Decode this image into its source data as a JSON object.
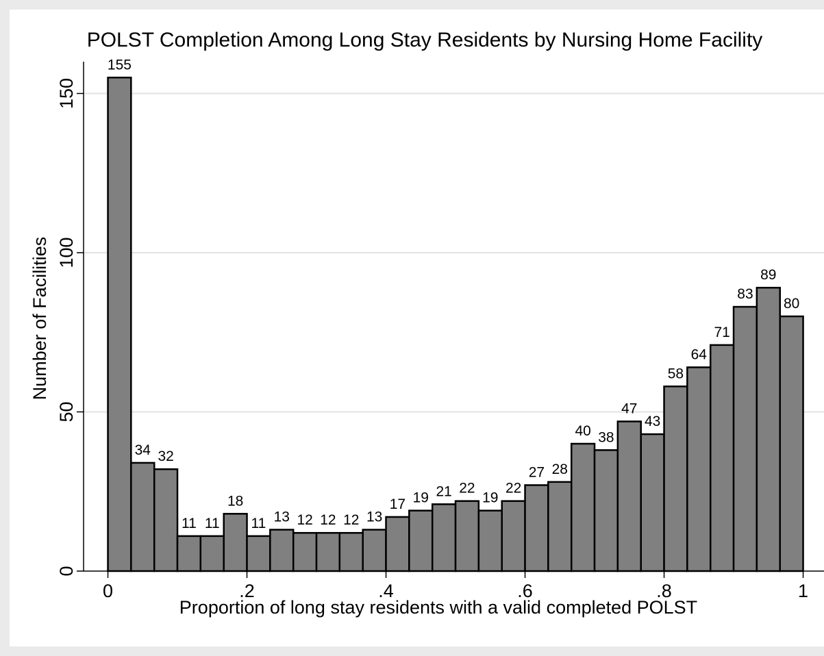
{
  "chart_data": {
    "type": "histogram",
    "title": "POLST Completion Among Long Stay Residents by Nursing Home Facility",
    "x_label": "Proportion of long stay residents with a valid completed POLST",
    "y_label": "Number of Facilities",
    "bins": [
      0,
      0.0333,
      0.0667,
      0.1,
      0.1333,
      0.1667,
      0.2,
      0.2333,
      0.2667,
      0.3,
      0.3333,
      0.3667,
      0.4,
      0.4333,
      0.4667,
      0.5,
      0.5333,
      0.5667,
      0.6,
      0.6333,
      0.6667,
      0.7,
      0.7333,
      0.7667,
      0.8,
      0.8333,
      0.8667,
      0.9,
      0.9333,
      0.9667,
      1
    ],
    "values": [
      155,
      34,
      32,
      11,
      11,
      18,
      11,
      13,
      12,
      12,
      12,
      13,
      17,
      19,
      21,
      22,
      19,
      22,
      27,
      28,
      40,
      38,
      47,
      43,
      58,
      64,
      71,
      83,
      89,
      80
    ],
    "color": "#808080",
    "xlim": [
      -0.035,
      1.03
    ],
    "xticks": [
      0,
      {
        "value": 0.2,
        "label": ".2"
      },
      {
        "value": 0.4,
        "label": ".4"
      },
      {
        "value": 0.6,
        "label": ".6"
      },
      {
        "value": 0.8,
        "label": ".8"
      },
      1
    ],
    "ylim": [
      0,
      160
    ],
    "yticks": [
      0,
      50,
      100,
      150
    ],
    "grid": true
  }
}
